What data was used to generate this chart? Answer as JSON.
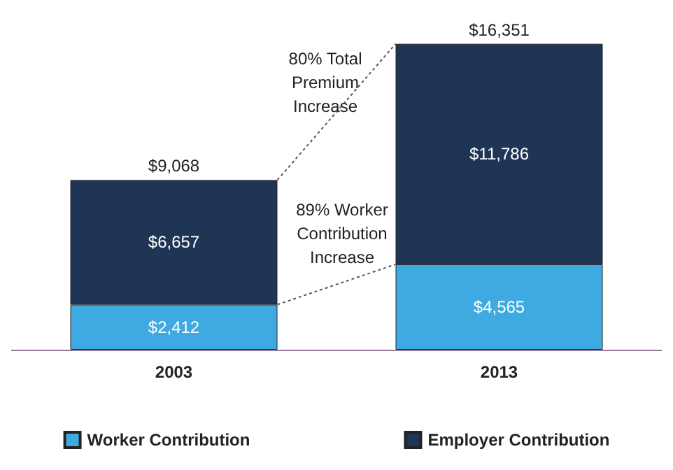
{
  "chart_data": {
    "type": "bar",
    "stacked": true,
    "categories": [
      "2003",
      "2013"
    ],
    "series": [
      {
        "name": "Worker Contribution",
        "color": "#3fa9e1",
        "values": [
          2412,
          4565
        ],
        "value_labels": [
          "$2,412",
          "$4,565"
        ]
      },
      {
        "name": "Employer Contribution",
        "color": "#1f3556",
        "values": [
          6657,
          11786
        ],
        "value_labels": [
          "$6,657",
          "$11,786"
        ]
      }
    ],
    "totals": [
      "$9,068",
      "$16,351"
    ],
    "annotations": [
      "80% Total Premium Increase",
      "89% Worker Contribution Increase"
    ],
    "ylim": [
      0,
      16600
    ],
    "tick_labels": "x",
    "legend": "bottom"
  }
}
